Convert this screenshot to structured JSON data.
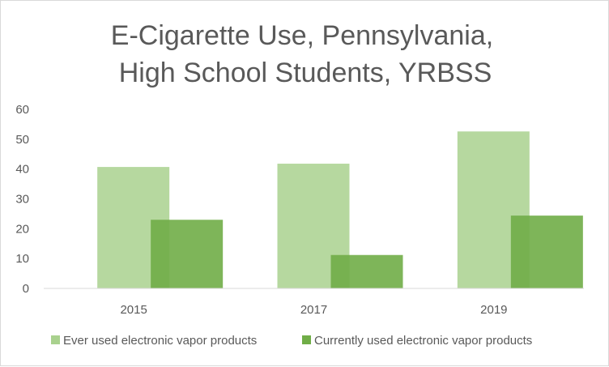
{
  "chart_data": {
    "type": "bar",
    "title_lines": [
      "E-Cigarette Use, Pennsylvania,",
      "High School Students, YRBSS"
    ],
    "categories": [
      "2015",
      "2017",
      "2019"
    ],
    "series": [
      {
        "name": "Ever used electronic vapor products",
        "values": [
          40.7,
          41.8,
          52.6
        ],
        "color": "#a9d18e"
      },
      {
        "name": "Currently used electronic vapor products",
        "values": [
          23.0,
          11.2,
          24.4
        ],
        "color": "#70ad47"
      }
    ],
    "ylim": [
      0,
      60
    ],
    "yticks": [
      "0",
      "10",
      "20",
      "30",
      "40",
      "50",
      "60"
    ],
    "grid": false,
    "legend_position": "bottom"
  }
}
